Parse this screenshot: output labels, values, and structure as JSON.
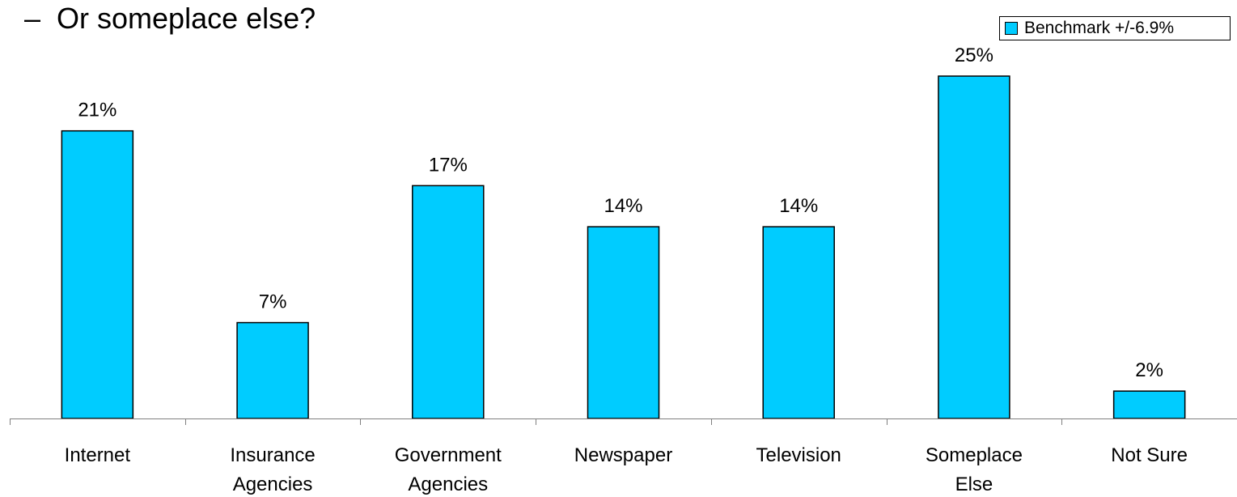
{
  "heading": {
    "dash": "–",
    "text": "Or someplace else?"
  },
  "colors": {
    "bar": "#00CCFF",
    "outline": "#000000"
  },
  "chart_data": {
    "type": "bar",
    "categories": [
      [
        "Internet"
      ],
      [
        "Insurance",
        "Agencies"
      ],
      [
        "Government",
        "Agencies"
      ],
      [
        "Newspaper"
      ],
      [
        "Television"
      ],
      [
        "Someplace",
        "Else"
      ],
      [
        "Not Sure"
      ]
    ],
    "series": [
      {
        "name": "Benchmark +/-6.9%",
        "values": [
          21,
          7,
          17,
          14,
          14,
          25,
          2
        ]
      }
    ],
    "data_labels": [
      "21%",
      "7%",
      "17%",
      "14%",
      "14%",
      "25%",
      "2%"
    ],
    "ylim": [
      0,
      25
    ],
    "grid": false,
    "legend_position": "top-right"
  }
}
